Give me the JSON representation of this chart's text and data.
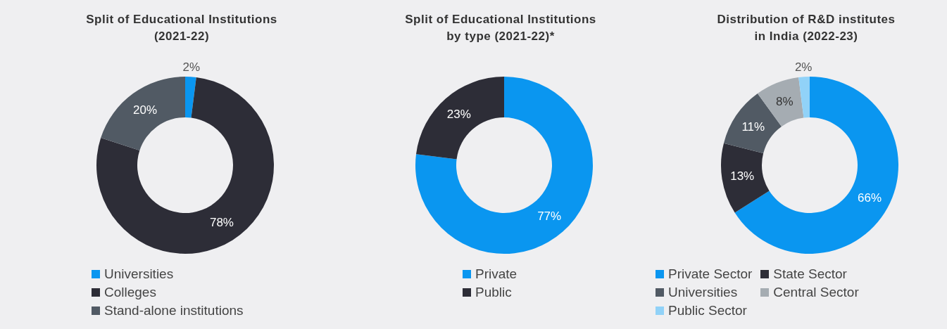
{
  "chart_data": [
    {
      "type": "donut",
      "title": "Split of Educational Institutions\n(2021-22)",
      "categories": [
        "Universities",
        "Colleges",
        "Stand-alone institutions"
      ],
      "values": [
        2,
        78,
        20
      ],
      "colors": [
        "#0a96f0",
        "#2d2d37",
        "#515a64"
      ],
      "value_labels": [
        "2%",
        "78%",
        "20%"
      ],
      "legend": "bottom"
    },
    {
      "type": "donut",
      "title": "Split of Educational Institutions\nby type (2021-22)*",
      "categories": [
        "Private",
        "Public"
      ],
      "values": [
        77,
        23
      ],
      "colors": [
        "#0a96f0",
        "#2d2d37"
      ],
      "value_labels": [
        "77%",
        "23%"
      ],
      "legend": "bottom"
    },
    {
      "type": "donut",
      "title": "Distribution of R&D institutes\nin India (2022-23)",
      "categories": [
        "Private Sector",
        "State Sector",
        "Universities",
        "Central Sector",
        "Public Sector"
      ],
      "values": [
        66,
        13,
        11,
        8,
        2
      ],
      "colors": [
        "#0a96f0",
        "#2d2d37",
        "#515a64",
        "#a5acb2",
        "#91d2f8"
      ],
      "value_labels": [
        "66%",
        "13%",
        "11%",
        "8%",
        "2%"
      ],
      "legend": "bottom"
    }
  ]
}
